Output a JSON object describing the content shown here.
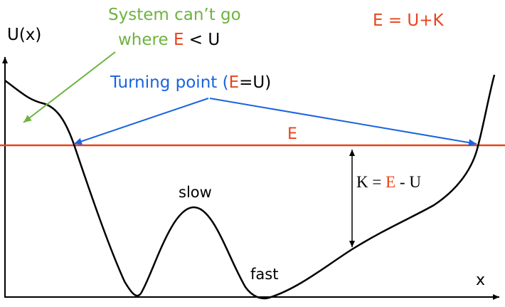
{
  "axes": {
    "y_label": "U(x)",
    "x_label": "x"
  },
  "annotations": {
    "forbidden_line1": "System can’t go",
    "forbidden_line2_prefix": "where ",
    "forbidden_line2_E": "E",
    "forbidden_line2_lt": " < ",
    "forbidden_line2_U": "U",
    "energy_eq": "E = U+K",
    "turning_prefix": "Turning point (",
    "turning_E": "E",
    "turning_eq": "=U)",
    "energy_label": "E",
    "kinetic_prefix": "K = ",
    "kinetic_E": "E",
    "kinetic_suffix": " - U",
    "slow": "slow",
    "fast": "fast"
  },
  "colors": {
    "energy_line": "#e8431c",
    "turning_arrows": "#1a63e0",
    "forbidden_arrow": "#6db33f",
    "curve": "#000000"
  }
}
